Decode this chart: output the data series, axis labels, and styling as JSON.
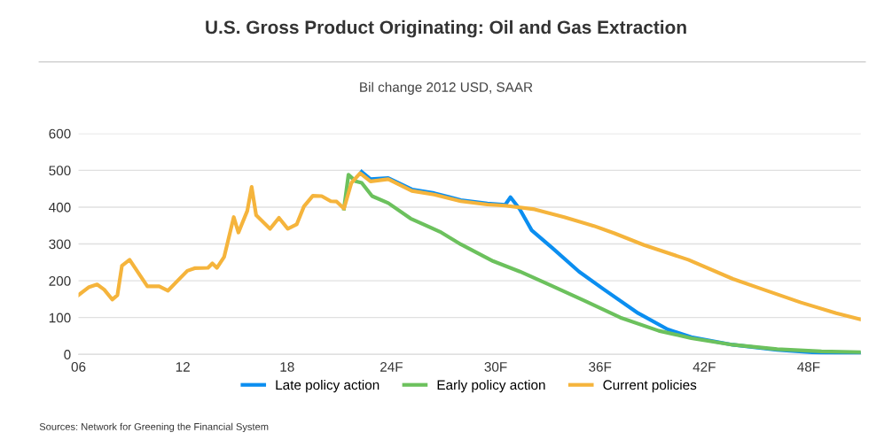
{
  "chart_data": {
    "type": "line",
    "title": "U.S. Gross Product Originating: Oil and Gas Extraction",
    "subtitle": "Bil change 2012 USD, SAAR",
    "annotations": [
      "Sources: Network for Greening the Financial System"
    ],
    "xlim": [
      6,
      51
    ],
    "xticks": [
      {
        "value": 6,
        "label": "06"
      },
      12,
      18,
      {
        "value": 24,
        "label": "24F"
      },
      {
        "value": 30,
        "label": "30F"
      },
      {
        "value": 36,
        "label": "36F"
      },
      {
        "value": 42,
        "label": "42F"
      },
      {
        "value": 48,
        "label": "48F"
      }
    ],
    "ylim": [
      0,
      600
    ],
    "yticks": [
      0,
      100,
      200,
      300,
      400,
      500,
      600
    ],
    "grid": "y",
    "legend": "bottom",
    "marker": "none",
    "line_style": "solid",
    "series": [
      {
        "name": "Late policy action",
        "color": "#0b8ef0",
        "x": [
          22.29,
          22.8,
          23.82,
          25.18,
          26.46,
          27.99,
          29.52,
          30.54,
          30.85,
          31.39,
          32.07,
          33.26,
          34.79,
          36.15,
          38.19,
          39.89,
          41.25,
          43.64,
          46.19,
          48.74,
          51.0
        ],
        "values": [
          496,
          476,
          479,
          448,
          438,
          419,
          410,
          406,
          427,
          394,
          337,
          289,
          225,
          179,
          112,
          68,
          47,
          26,
          12,
          4,
          2
        ]
      },
      {
        "name": "Early policy action",
        "color": "#6cc15d",
        "x": [
          21.27,
          21.53,
          21.95,
          22.29,
          22.89,
          23.82,
          25.1,
          26.8,
          27.99,
          29.86,
          31.39,
          33.09,
          35.13,
          37.17,
          39.38,
          41.25,
          43.64,
          46.19,
          48.74,
          51.0
        ],
        "values": [
          396,
          488,
          470,
          466,
          430,
          411,
          369,
          333,
          299,
          253,
          225,
          189,
          145,
          100,
          64,
          44,
          26,
          14,
          8,
          6
        ]
      },
      {
        "name": "Current policies",
        "color": "#f5b43c",
        "x": [
          6.0,
          6.61,
          7.07,
          7.48,
          7.94,
          8.24,
          8.5,
          8.94,
          9.96,
          10.64,
          11.15,
          11.66,
          12.26,
          12.68,
          13.45,
          13.7,
          13.96,
          14.38,
          14.93,
          15.2,
          15.71,
          15.96,
          16.22,
          17.02,
          17.53,
          18.04,
          18.55,
          18.97,
          19.48,
          19.99,
          20.51,
          20.85,
          21.27,
          21.7,
          22.2,
          22.8,
          23.82,
          25.18,
          26.46,
          27.99,
          29.52,
          30.54,
          32.24,
          33.94,
          35.64,
          36.83,
          38.53,
          41.08,
          43.64,
          45.34,
          47.55,
          49.59,
          51.0
        ],
        "values": [
          161,
          183,
          190,
          176,
          149,
          161,
          241,
          257,
          185,
          185,
          173,
          198,
          227,
          234,
          235,
          247,
          235,
          265,
          373,
          331,
          390,
          455,
          378,
          341,
          371,
          341,
          353,
          402,
          431,
          430,
          416,
          415,
          396,
          466,
          492,
          470,
          476,
          444,
          434,
          416,
          407,
          404,
          394,
          373,
          349,
          329,
          297,
          257,
          205,
          177,
          141,
          112,
          95
        ]
      }
    ]
  }
}
